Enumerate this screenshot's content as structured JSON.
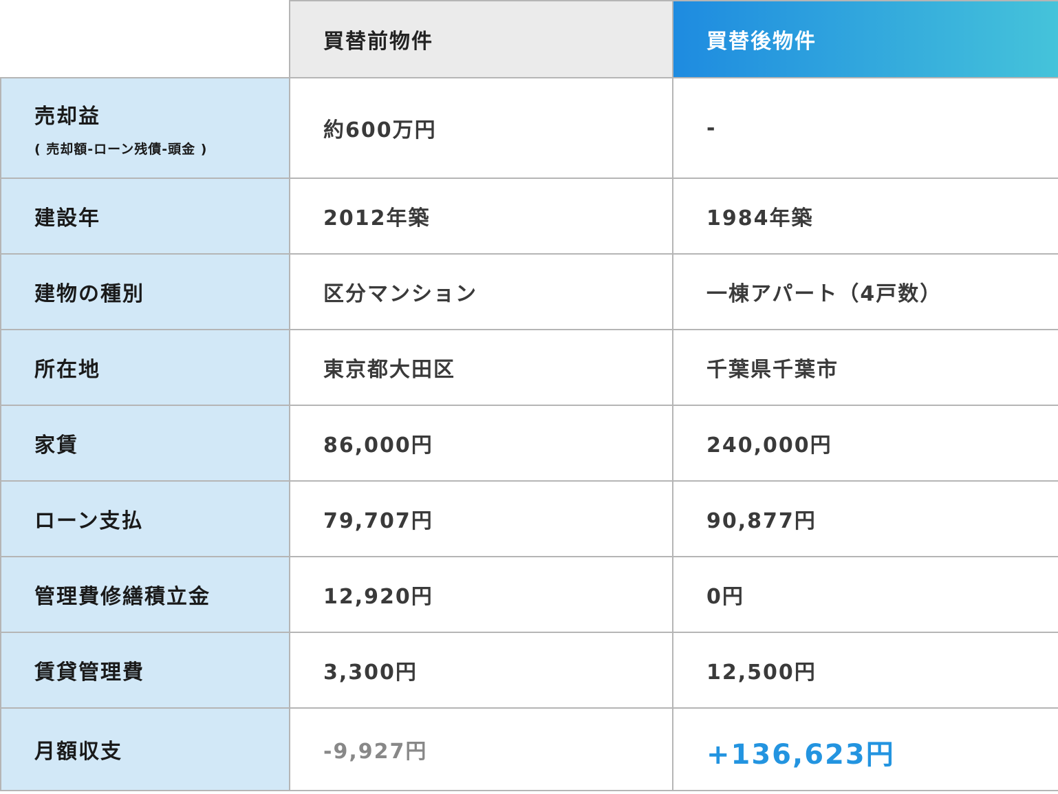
{
  "header": {
    "before": "買替前物件",
    "after": "買替後物件"
  },
  "colors": {
    "label_bg": "#d2e8f7",
    "header_before_bg": "#ebebeb",
    "header_after_gradient": [
      "#1e8be0",
      "#45c3da"
    ],
    "positive": "#2394e0",
    "negative": "#888888"
  },
  "rows": [
    {
      "label": "売却益",
      "sub": "( 売却額-ローン残債-頭金 )",
      "before": "約600万円",
      "after": "-"
    },
    {
      "label": "建設年",
      "before": "2012年築",
      "after": "1984年築"
    },
    {
      "label": "建物の種別",
      "before": "区分マンション",
      "after": "一棟アパート（4戸数）"
    },
    {
      "label": "所在地",
      "before": "東京都大田区",
      "after": "千葉県千葉市"
    },
    {
      "label": "家賃",
      "before": "86,000円",
      "after": "240,000円"
    },
    {
      "label": "ローン支払",
      "before": "79,707円",
      "after": "90,877円"
    },
    {
      "label": "管理費修繕積立金",
      "before": "12,920円",
      "after": "0円"
    },
    {
      "label": "賃貸管理費",
      "before": "3,300円",
      "after": "12,500円"
    },
    {
      "label": "月額収支",
      "before": "-9,927円",
      "after": "+136,623円"
    }
  ]
}
